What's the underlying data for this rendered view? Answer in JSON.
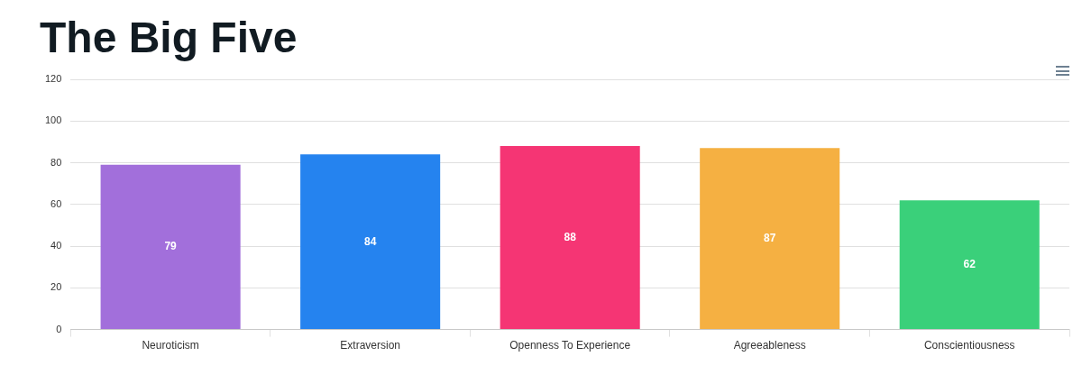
{
  "chart_data": {
    "type": "bar",
    "title": "The Big Five",
    "categories": [
      "Neuroticism",
      "Extraversion",
      "Openness To Experience",
      "Agreeableness",
      "Conscientiousness"
    ],
    "values": [
      79,
      84,
      88,
      87,
      62
    ],
    "colors": [
      "#a26fdb",
      "#2583ef",
      "#f53574",
      "#f5b042",
      "#3ad07a"
    ],
    "ylim": [
      0,
      120
    ],
    "yticks": [
      0,
      20,
      40,
      60,
      80,
      100,
      120
    ],
    "grid": "y",
    "data_labels": true
  }
}
